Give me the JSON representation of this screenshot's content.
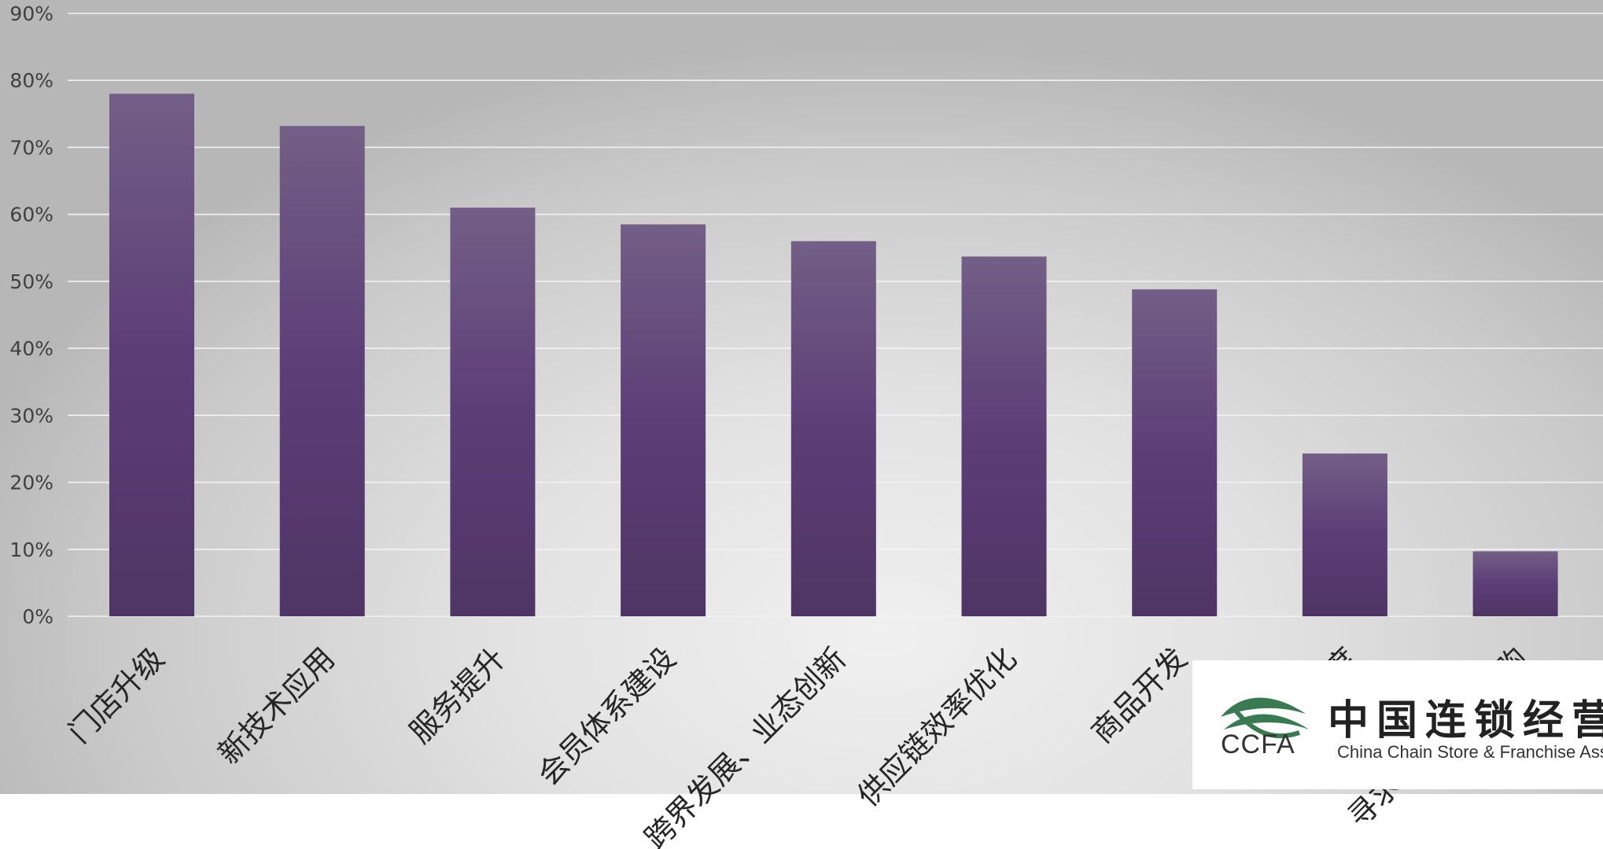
{
  "chart_data": {
    "type": "bar",
    "categories": [
      "门店升级",
      "新技术应用",
      "服务提升",
      "会员体系建设",
      "跨界发展、业态创新",
      "供应链效率优化",
      "商品开发",
      "加快开店速度",
      "寻求并购或被并购"
    ],
    "values": [
      78,
      73.2,
      61,
      58.5,
      56,
      53.7,
      48.8,
      24.3,
      9.7
    ],
    "value_unit": "%",
    "ylim": [
      0,
      90
    ],
    "yticks": [
      "0%",
      "10%",
      "20%",
      "30%",
      "40%",
      "50%",
      "60%",
      "70%",
      "80%",
      "90%"
    ],
    "ytick_values": [
      0,
      10,
      20,
      30,
      40,
      50,
      60,
      70,
      80,
      90
    ],
    "title": "",
    "xlabel": "",
    "ylabel": "",
    "grid": true,
    "legend": "none",
    "bar_color_top": "#735f86",
    "bar_color_bottom": "#4f3565",
    "bar_color_mid": "#5c3e77"
  },
  "logo": {
    "abbr": "CCFA",
    "name_cn": "中国连锁经营协会",
    "name_en": "China Chain Store & Franchise Association",
    "mark_color": "#3a7a52"
  }
}
